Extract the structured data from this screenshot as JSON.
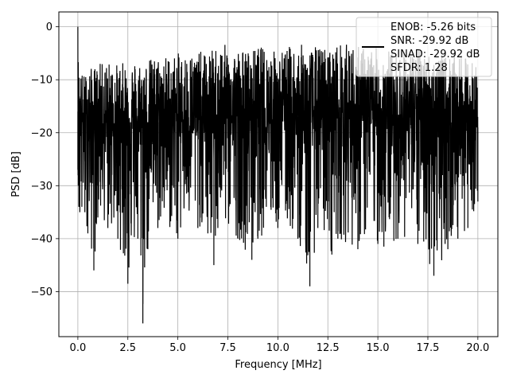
{
  "chart_data": {
    "type": "line",
    "title": "",
    "xlabel": "Frequency [MHz]",
    "ylabel": "PSD [dB]",
    "xlim": [
      -0.95,
      21.0
    ],
    "ylim": [
      -58.5,
      2.8
    ],
    "x_ticks": [
      0.0,
      2.5,
      5.0,
      7.5,
      10.0,
      12.5,
      15.0,
      17.5,
      20.0
    ],
    "x_tick_labels": [
      "0.0",
      "2.5",
      "5.0",
      "7.5",
      "10.0",
      "12.5",
      "15.0",
      "17.5",
      "20.0"
    ],
    "y_ticks": [
      0,
      -10,
      -20,
      -30,
      -40,
      -50
    ],
    "y_tick_labels": [
      "0",
      "−10",
      "−20",
      "−30",
      "−40",
      "−50"
    ],
    "grid": true,
    "legend_position": "top-right",
    "line_color": "#000000",
    "series": [
      {
        "x": [
          0.0,
          0.02,
          0.05,
          0.1,
          0.2,
          0.35,
          0.5,
          0.8,
          1.0,
          1.5,
          2.0,
          2.5,
          3.0,
          3.25,
          3.5,
          4.0,
          5.0,
          6.0,
          6.5,
          6.8,
          7.0,
          8.0,
          8.7,
          9.0,
          10.0,
          11.0,
          11.6,
          12.0,
          12.7,
          13.0,
          14.0,
          15.0,
          15.3,
          16.0,
          17.0,
          17.8,
          18.5,
          19.0,
          19.5,
          20.0
        ],
        "top": [
          0.0,
          -5.0,
          -7.0,
          -8.0,
          -8.5,
          -9.0,
          -8.0,
          -7.5,
          -7.0,
          -6.5,
          -7.0,
          -6.5,
          -6.0,
          -6.5,
          -6.0,
          -5.5,
          -5.0,
          -4.5,
          -5.0,
          -4.0,
          -3.0,
          -4.0,
          -4.5,
          -3.5,
          -4.5,
          -3.0,
          -4.0,
          -3.5,
          -4.0,
          -3.0,
          -3.5,
          -4.0,
          -4.0,
          -4.5,
          -4.0,
          -5.0,
          -5.5,
          -5.0,
          -6.0,
          -7.0
        ],
        "bottom": [
          -27.0,
          -30.0,
          -34.0,
          -35.0,
          -34.0,
          -35.0,
          -39.0,
          -46.0,
          -36.0,
          -38.0,
          -40.0,
          -48.5,
          -40.0,
          -56.0,
          -42.0,
          -38.0,
          -40.0,
          -38.0,
          -39.0,
          -45.0,
          -38.0,
          -40.0,
          -44.0,
          -40.0,
          -38.0,
          -40.0,
          -49.0,
          -38.0,
          -43.0,
          -40.0,
          -42.0,
          -41.0,
          -41.5,
          -40.0,
          -41.0,
          -47.0,
          -42.0,
          -40.0,
          -38.0,
          -33.0
        ],
        "mid": [
          -16.0,
          -15.0,
          -16.0,
          -17.0,
          -18.0,
          -18.0,
          -18.0,
          -18.5,
          -18.0,
          -18.0,
          -18.5,
          -18.0,
          -18.5,
          -18.0,
          -18.0,
          -18.0,
          -17.5,
          -17.5,
          -18.0,
          -17.5,
          -17.0,
          -17.5,
          -17.5,
          -17.0,
          -17.5,
          -17.0,
          -17.0,
          -17.0,
          -17.5,
          -17.0,
          -17.0,
          -17.5,
          -17.5,
          -17.5,
          -17.5,
          -18.0,
          -18.0,
          -18.0,
          -18.0,
          -19.0
        ]
      }
    ],
    "legend": {
      "entries": [
        "ENOB: -5.26 bits",
        "SNR: -29.92 dB",
        "SINAD: -29.92 dB",
        "SFDR: 1.28"
      ]
    }
  }
}
